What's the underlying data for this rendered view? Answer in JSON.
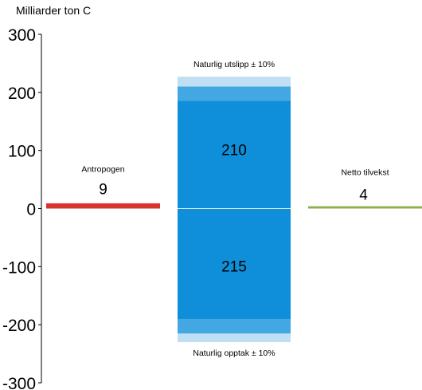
{
  "chart_data": {
    "type": "bar",
    "unit_label": "Milliarder ton C",
    "ylim": [
      -300,
      300
    ],
    "yticks": [
      300,
      200,
      100,
      0,
      -100,
      -200,
      -300
    ],
    "grid": false,
    "colors": {
      "antropogen": "#d9342b",
      "netto": "#8db04a",
      "natural_main": "#0f8fda",
      "natural_band_dark": "#43a8e2",
      "natural_band_light": "#bfe0f3"
    },
    "bars": [
      {
        "label": "Antropogen",
        "value": 9,
        "value_label": "9"
      },
      {
        "label": "Netto tilvekst",
        "value": 4,
        "value_label": "4"
      }
    ],
    "natural": {
      "emission": {
        "label": "Naturlig utslipp ± 10%",
        "value": 210,
        "value_label": "210",
        "range": [
          185,
          227
        ]
      },
      "uptake": {
        "label": "Naturlig opptak ± 10%",
        "value": -215,
        "value_label": "215",
        "range": [
          -230,
          -190
        ]
      }
    }
  }
}
